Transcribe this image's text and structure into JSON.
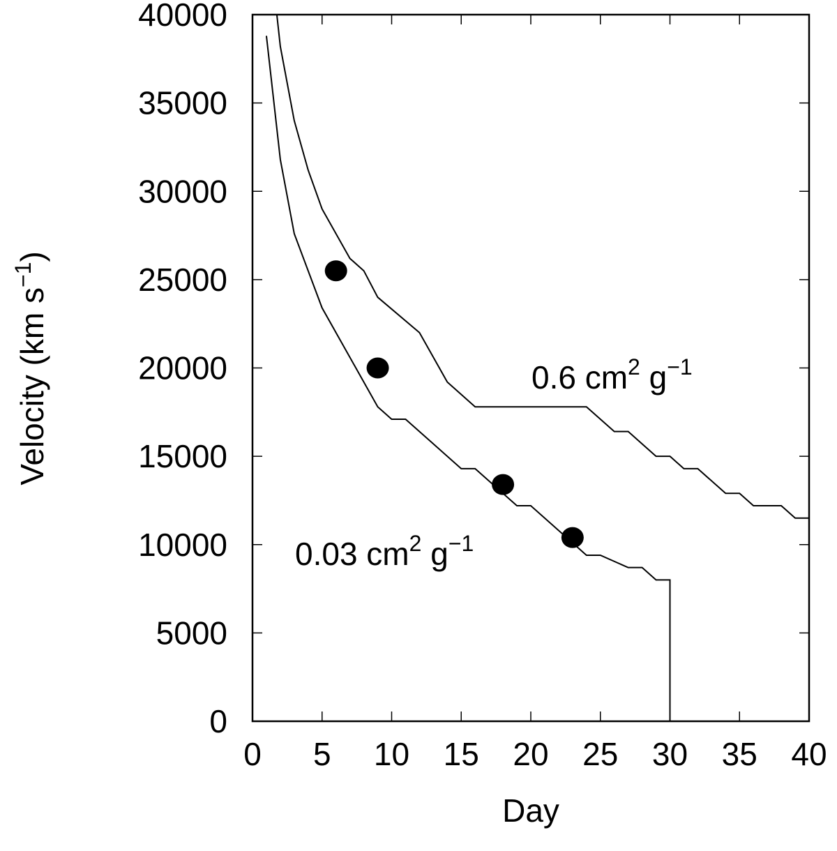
{
  "chart_data": {
    "type": "line",
    "xlabel": "Day",
    "ylabel": "Velocity (km s",
    "ylabel_sup": "−1",
    "ylabel_tail": ")",
    "xlim": [
      0,
      40
    ],
    "ylim": [
      0,
      40000
    ],
    "xticks": [
      0,
      5,
      10,
      15,
      20,
      25,
      30,
      35,
      40
    ],
    "yticks": [
      0,
      5000,
      10000,
      15000,
      20000,
      25000,
      30000,
      35000,
      40000
    ],
    "grid": false,
    "series": [
      {
        "name": "0.6 cm2 g-1",
        "label": {
          "main": "0.6 cm",
          "sup1": "2",
          "mid": " g",
          "sup2": "−1"
        },
        "x": [
          1.75,
          2,
          3,
          4,
          5,
          7,
          8,
          9,
          12,
          14,
          16,
          24,
          26,
          27,
          29,
          30,
          31,
          32,
          34,
          35,
          36,
          38,
          39,
          40
        ],
        "y": [
          40000,
          38200,
          34000,
          31200,
          29000,
          26200,
          25500,
          24000,
          22000,
          19200,
          17800,
          17800,
          16400,
          16400,
          15000,
          15000,
          14300,
          14300,
          12900,
          12900,
          12200,
          12200,
          11500,
          11500
        ]
      },
      {
        "name": "0.03 cm2 g-1",
        "label": {
          "main": "0.03 cm",
          "sup1": "2",
          "mid": " g",
          "sup2": "−1"
        },
        "x": [
          1,
          2,
          3,
          5,
          9,
          10,
          11,
          15,
          16,
          19,
          20,
          24,
          25,
          27,
          28,
          29,
          30,
          30
        ],
        "y": [
          38800,
          31800,
          27600,
          23400,
          17800,
          17100,
          17100,
          14300,
          14300,
          12200,
          12200,
          9400,
          9400,
          8700,
          8700,
          8000,
          8000,
          0
        ]
      }
    ],
    "points": {
      "x": [
        6,
        9,
        18,
        23
      ],
      "y": [
        25500,
        20000,
        13400,
        10400
      ]
    },
    "colors": {
      "line": "#000000",
      "points": "#000000"
    }
  }
}
